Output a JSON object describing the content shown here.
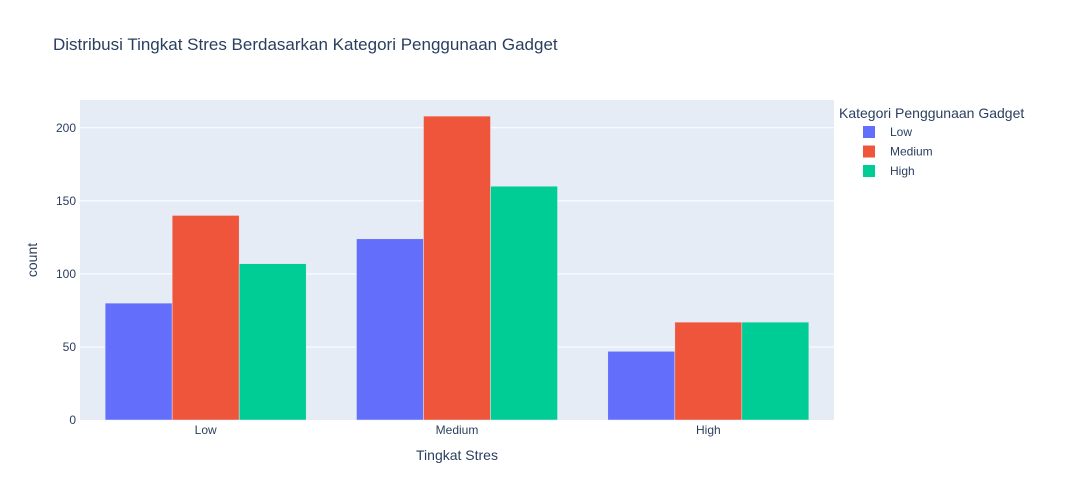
{
  "chart_data": {
    "type": "bar",
    "title": "Distribusi Tingkat Stres Berdasarkan Kategori Penggunaan Gadget",
    "xlabel": "Tingkat Stres",
    "ylabel": "count",
    "categories": [
      "Low",
      "Medium",
      "High"
    ],
    "series": [
      {
        "name": "Low",
        "color": "#636efa",
        "values": [
          80,
          124,
          47
        ]
      },
      {
        "name": "Medium",
        "color": "#ef553b",
        "values": [
          140,
          208,
          67
        ]
      },
      {
        "name": "High",
        "color": "#00cc96",
        "values": [
          107,
          160,
          67
        ]
      }
    ],
    "ylim": [
      0,
      219
    ],
    "yticks": [
      0,
      50,
      100,
      150,
      200
    ],
    "grid": true,
    "legend": {
      "title": "Kategori Penggunaan Gadget",
      "placement": "right"
    },
    "plot_background": "#e5ecf6"
  }
}
